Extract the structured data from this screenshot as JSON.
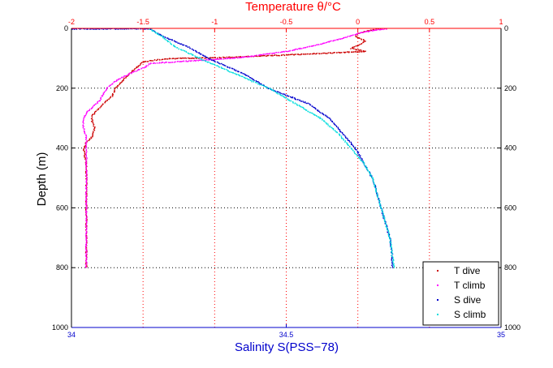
{
  "chart_data": {
    "type": "scatter",
    "title": "Temperature θ/°C",
    "xlabel": "Salinity S(PSS−78)",
    "ylabel": "Depth (m)",
    "grid": true,
    "legend_position": "bottom-right",
    "axes": {
      "salinity": {
        "position": "bottom",
        "range": [
          34,
          35
        ],
        "ticks": [
          34,
          34.5,
          35
        ],
        "tick_labels": [
          "34",
          "34.5",
          "35"
        ],
        "color": "#0000cc"
      },
      "temperature": {
        "position": "top",
        "range": [
          -2,
          1
        ],
        "ticks": [
          -2,
          -1.5,
          -1,
          -0.5,
          0,
          0.5,
          1
        ],
        "tick_labels": [
          "-2",
          "-1.5",
          "-1",
          "-0.5",
          "0",
          "0.5",
          "1"
        ],
        "color": "#ff0000"
      },
      "depth": {
        "range": [
          0,
          1000
        ],
        "reversed": true,
        "ticks": [
          0,
          200,
          400,
          600,
          800,
          1000
        ],
        "tick_labels": [
          "0",
          "200",
          "400",
          "600",
          "800",
          "1000"
        ]
      }
    },
    "series": [
      {
        "name": "T dive",
        "axis": "temperature",
        "color": "#cc0000",
        "points": [
          [
            0.15,
            0
          ],
          [
            0.08,
            5
          ],
          [
            0.0,
            15
          ],
          [
            -0.02,
            25
          ],
          [
            0.05,
            40
          ],
          [
            0.0,
            55
          ],
          [
            -0.05,
            65
          ],
          [
            0.05,
            75
          ],
          [
            -0.4,
            85
          ],
          [
            -0.9,
            95
          ],
          [
            -1.35,
            100
          ],
          [
            -1.5,
            110
          ],
          [
            -1.55,
            130
          ],
          [
            -1.6,
            150
          ],
          [
            -1.65,
            175
          ],
          [
            -1.7,
            200
          ],
          [
            -1.72,
            225
          ],
          [
            -1.78,
            250
          ],
          [
            -1.82,
            270
          ],
          [
            -1.86,
            290
          ],
          [
            -1.86,
            310
          ],
          [
            -1.84,
            330
          ],
          [
            -1.86,
            360
          ],
          [
            -1.9,
            380
          ],
          [
            -1.92,
            400
          ],
          [
            -1.9,
            450
          ],
          [
            -1.9,
            500
          ],
          [
            -1.9,
            550
          ],
          [
            -1.9,
            600
          ],
          [
            -1.9,
            650
          ],
          [
            -1.9,
            700
          ],
          [
            -1.9,
            750
          ],
          [
            -1.9,
            800
          ]
        ]
      },
      {
        "name": "T climb",
        "axis": "temperature",
        "color": "#ff00ff",
        "points": [
          [
            0.2,
            0
          ],
          [
            0.1,
            5
          ],
          [
            0.0,
            15
          ],
          [
            -0.1,
            30
          ],
          [
            -0.3,
            55
          ],
          [
            -0.5,
            75
          ],
          [
            -0.8,
            95
          ],
          [
            -1.1,
            105
          ],
          [
            -1.45,
            115
          ],
          [
            -1.5,
            130
          ],
          [
            -1.6,
            150
          ],
          [
            -1.68,
            170
          ],
          [
            -1.75,
            195
          ],
          [
            -1.78,
            215
          ],
          [
            -1.8,
            235
          ],
          [
            -1.84,
            255
          ],
          [
            -1.9,
            280
          ],
          [
            -1.92,
            300
          ],
          [
            -1.92,
            330
          ],
          [
            -1.9,
            360
          ],
          [
            -1.9,
            400
          ],
          [
            -1.9,
            450
          ],
          [
            -1.9,
            500
          ],
          [
            -1.9,
            550
          ],
          [
            -1.9,
            600
          ],
          [
            -1.9,
            650
          ],
          [
            -1.9,
            700
          ],
          [
            -1.9,
            750
          ],
          [
            -1.9,
            800
          ]
        ]
      },
      {
        "name": "S dive",
        "axis": "salinity",
        "color": "#0000cc",
        "points": [
          [
            34.0,
            0
          ],
          [
            34.18,
            0
          ],
          [
            34.22,
            30
          ],
          [
            34.27,
            60
          ],
          [
            34.32,
            100
          ],
          [
            34.4,
            150
          ],
          [
            34.46,
            200
          ],
          [
            34.55,
            250
          ],
          [
            34.6,
            300
          ],
          [
            34.63,
            350
          ],
          [
            34.66,
            400
          ],
          [
            34.68,
            450
          ],
          [
            34.7,
            500
          ],
          [
            34.71,
            550
          ],
          [
            34.72,
            600
          ],
          [
            34.73,
            650
          ],
          [
            34.74,
            700
          ],
          [
            34.745,
            750
          ],
          [
            34.745,
            800
          ]
        ]
      },
      {
        "name": "S climb",
        "axis": "salinity",
        "color": "#00dddd",
        "points": [
          [
            34.18,
            0
          ],
          [
            34.21,
            25
          ],
          [
            34.24,
            60
          ],
          [
            34.3,
            100
          ],
          [
            34.38,
            150
          ],
          [
            34.46,
            200
          ],
          [
            34.52,
            250
          ],
          [
            34.58,
            300
          ],
          [
            34.62,
            350
          ],
          [
            34.65,
            400
          ],
          [
            34.68,
            450
          ],
          [
            34.7,
            500
          ],
          [
            34.71,
            550
          ],
          [
            34.72,
            600
          ],
          [
            34.73,
            650
          ],
          [
            34.74,
            700
          ],
          [
            34.745,
            750
          ],
          [
            34.75,
            800
          ]
        ]
      }
    ]
  }
}
